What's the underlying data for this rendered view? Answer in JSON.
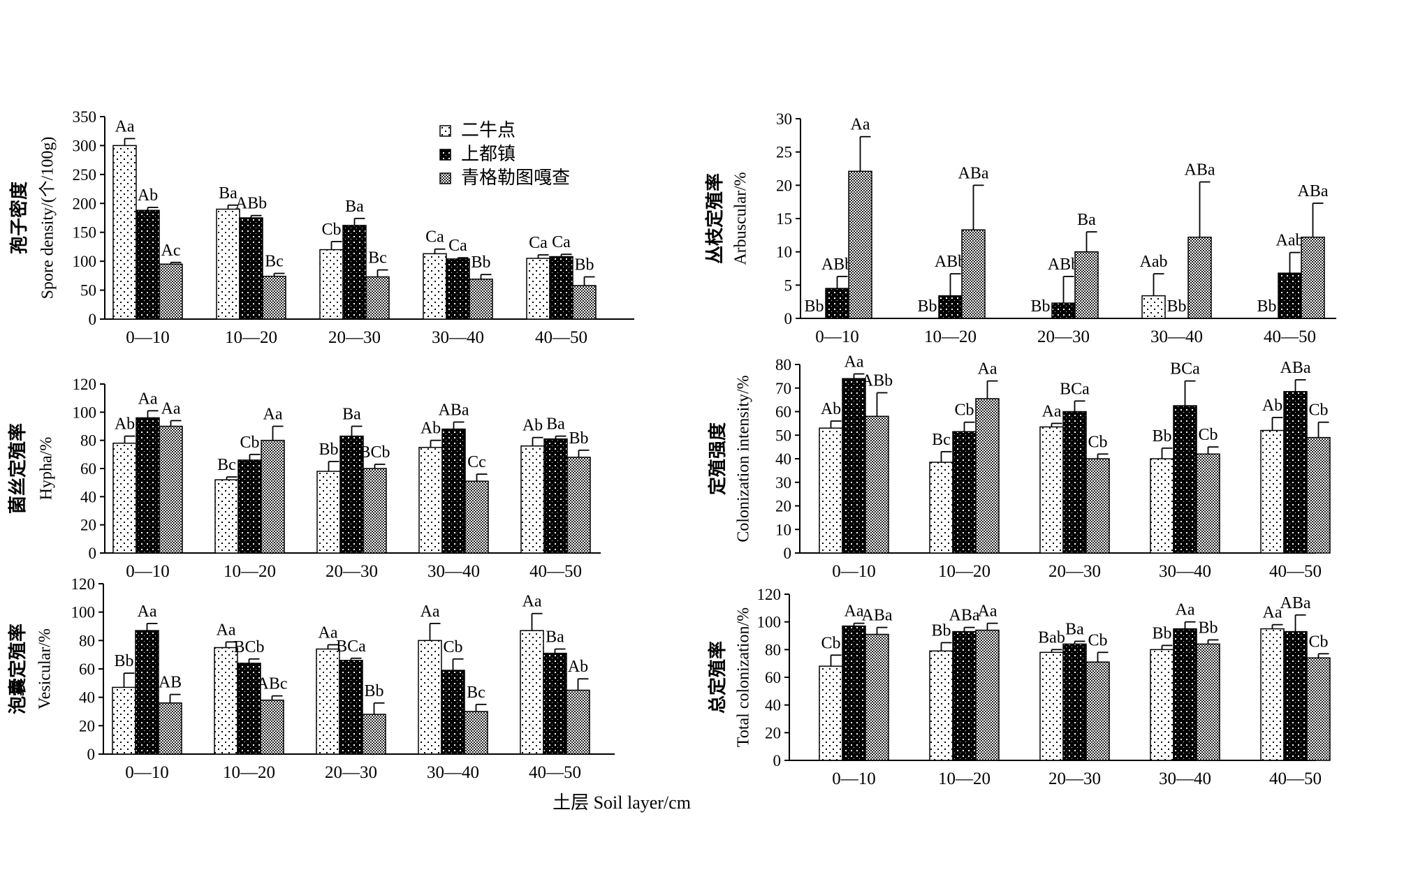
{
  "figure": {
    "x_title": "土层 Soil layer/cm"
  },
  "legend": {
    "labels": [
      "二牛点",
      "上都镇",
      "青格勒图嘎查"
    ]
  },
  "chart_data": [
    {
      "id": "spore",
      "type": "bar",
      "ylabel_cn": "孢子密度",
      "ylabel_en": "Spore density/(个/100g)",
      "ylim": [
        0,
        350
      ],
      "yticks": [
        0,
        50,
        100,
        150,
        200,
        250,
        300,
        350
      ],
      "categories": [
        "0—10",
        "10—20",
        "20—30",
        "30—40",
        "40—50"
      ],
      "series": [
        {
          "name": "二牛点",
          "values": [
            300,
            190,
            120,
            113,
            105
          ],
          "errors": [
            12,
            7,
            14,
            8,
            6
          ],
          "labels": [
            "Aa",
            "Ba",
            "Cb",
            "Ca",
            "Ca"
          ]
        },
        {
          "name": "上都镇",
          "values": [
            188,
            175,
            162,
            104,
            108
          ],
          "errors": [
            5,
            4,
            12,
            2,
            4
          ],
          "labels": [
            "Ab",
            "ABb",
            "Ba",
            "Ca",
            "Ca"
          ]
        },
        {
          "name": "青格勒图嘎查",
          "values": [
            95,
            74,
            73,
            69,
            58
          ],
          "errors": [
            3,
            5,
            12,
            8,
            15
          ],
          "labels": [
            "Ac",
            "Bc",
            "Bc",
            "Bb",
            "Bb"
          ]
        }
      ]
    },
    {
      "id": "arbuscular",
      "type": "bar",
      "ylabel_cn": "丛枝定殖率",
      "ylabel_en": "Arbuscular/%",
      "ylim": [
        0,
        30
      ],
      "yticks": [
        0,
        5,
        10,
        15,
        20,
        25,
        30
      ],
      "categories": [
        "0—10",
        "10—20",
        "20—30",
        "30—40",
        "40—50"
      ],
      "series": [
        {
          "name": "二牛点",
          "values": [
            0,
            0,
            0,
            3.4,
            0
          ],
          "errors": [
            0,
            0,
            0,
            3.3,
            0
          ],
          "labels": [
            "Bb",
            "Bb",
            "Bb",
            "Aab",
            "Bb"
          ]
        },
        {
          "name": "上都镇",
          "values": [
            4.5,
            3.4,
            2.3,
            0,
            6.8
          ],
          "errors": [
            1.8,
            3.3,
            4.0,
            0,
            3.1
          ],
          "labels": [
            "ABb",
            "ABb",
            "ABb",
            "Bb",
            "Aab"
          ]
        },
        {
          "name": "青格勒图嘎查",
          "values": [
            22.1,
            13.3,
            10.0,
            12.2,
            12.2
          ],
          "errors": [
            5.2,
            6.7,
            3.0,
            8.3,
            5.1
          ],
          "labels": [
            "Aa",
            "ABa",
            "Ba",
            "ABa",
            "ABa"
          ]
        }
      ]
    },
    {
      "id": "hypha",
      "type": "bar",
      "ylabel_cn": "菌丝定殖率",
      "ylabel_en": "Hypha/%",
      "ylim": [
        0,
        120
      ],
      "yticks": [
        0,
        20,
        40,
        60,
        80,
        100,
        120
      ],
      "categories": [
        "0—10",
        "10—20",
        "20—30",
        "30—40",
        "40—50"
      ],
      "series": [
        {
          "name": "二牛点",
          "values": [
            78,
            52,
            58,
            75,
            76
          ],
          "errors": [
            5,
            2,
            7,
            5,
            6
          ],
          "labels": [
            "Ab",
            "Bc",
            "Bb",
            "Ab",
            "Ab"
          ]
        },
        {
          "name": "上都镇",
          "values": [
            96,
            66,
            83,
            88,
            81
          ],
          "errors": [
            5,
            4,
            7,
            5,
            2
          ],
          "labels": [
            "Aa",
            "Cb",
            "Ba",
            "ABa",
            "Ba"
          ]
        },
        {
          "name": "青格勒图嘎查",
          "values": [
            90,
            80,
            60,
            51,
            68
          ],
          "errors": [
            4,
            10,
            3,
            5,
            5
          ],
          "labels": [
            "Aa",
            "Aa",
            "BCb",
            "Cc",
            "Bb"
          ]
        }
      ]
    },
    {
      "id": "intensity",
      "type": "bar",
      "ylabel_cn": "定殖强度",
      "ylabel_en": "Colonization intensity/%",
      "ylim": [
        0,
        80
      ],
      "yticks": [
        0,
        10,
        20,
        30,
        40,
        50,
        60,
        70,
        80
      ],
      "categories": [
        "0—10",
        "10—20",
        "20—30",
        "30—40",
        "40—50"
      ],
      "series": [
        {
          "name": "二牛点",
          "values": [
            53,
            38.5,
            53.5,
            40,
            52
          ],
          "errors": [
            3,
            4.5,
            1.5,
            4.5,
            5.5
          ],
          "labels": [
            "Ab",
            "Bc",
            "Aa",
            "Bb",
            "Ab"
          ]
        },
        {
          "name": "上都镇",
          "values": [
            74,
            51.5,
            60,
            62.5,
            68.5
          ],
          "errors": [
            2,
            4,
            4.5,
            10.5,
            5
          ],
          "labels": [
            "Aa",
            "Cb",
            "BCa",
            "BCa",
            "ABa"
          ]
        },
        {
          "name": "青格勒图嘎查",
          "values": [
            58,
            65.5,
            40,
            42,
            49
          ],
          "errors": [
            10,
            7.5,
            2,
            3,
            6.5
          ],
          "labels": [
            "ABb",
            "Aa",
            "Cb",
            "Cb",
            "Cb"
          ]
        }
      ]
    },
    {
      "id": "vesicular",
      "type": "bar",
      "ylabel_cn": "泡囊定殖率",
      "ylabel_en": "Vesicular/%",
      "ylim": [
        0,
        120
      ],
      "yticks": [
        0,
        20,
        40,
        60,
        80,
        100,
        120
      ],
      "categories": [
        "0—10",
        "10—20",
        "20—30",
        "30—40",
        "40—50"
      ],
      "series": [
        {
          "name": "二牛点",
          "values": [
            47,
            75,
            74,
            80,
            87
          ],
          "errors": [
            10,
            4,
            3,
            12,
            12
          ],
          "labels": [
            "Bb",
            "Aa",
            "Aa",
            "Aa",
            "Aa"
          ]
        },
        {
          "name": "上都镇",
          "values": [
            87,
            64,
            66,
            59,
            71
          ],
          "errors": [
            5,
            3,
            1.5,
            8,
            3
          ],
          "labels": [
            "Aa",
            "BCb",
            "BCa",
            "Cb",
            "Ba"
          ]
        },
        {
          "name": "青格勒图嘎查",
          "values": [
            36,
            38,
            28,
            30,
            45
          ],
          "errors": [
            6,
            3,
            8,
            5,
            8
          ],
          "labels": [
            "AB",
            "ABc",
            "Bb",
            "Bc",
            "Ab"
          ]
        }
      ]
    },
    {
      "id": "total",
      "type": "bar",
      "ylabel_cn": "总定殖率",
      "ylabel_en": "Total colonization/%",
      "ylim": [
        0,
        120
      ],
      "yticks": [
        0,
        20,
        40,
        60,
        80,
        100,
        120
      ],
      "categories": [
        "0—10",
        "10—20",
        "20—30",
        "30—40",
        "40—50"
      ],
      "series": [
        {
          "name": "二牛点",
          "values": [
            68,
            79,
            78,
            80,
            95
          ],
          "errors": [
            8,
            6,
            2,
            3,
            3
          ],
          "labels": [
            "Cb",
            "Bb",
            "Bab",
            "Bb",
            "Aa"
          ]
        },
        {
          "name": "上都镇",
          "values": [
            97,
            93,
            84,
            95,
            93
          ],
          "errors": [
            2,
            3,
            2,
            5,
            12
          ],
          "labels": [
            "Aa",
            "ABa",
            "Ba",
            "Aa",
            "ABa"
          ]
        },
        {
          "name": "青格勒图嘎查",
          "values": [
            91,
            94,
            71,
            84,
            74
          ],
          "errors": [
            5,
            5,
            7,
            3,
            3
          ],
          "labels": [
            "ABa",
            "Aa",
            "Cb",
            "Bb",
            "Cb"
          ]
        }
      ]
    }
  ]
}
